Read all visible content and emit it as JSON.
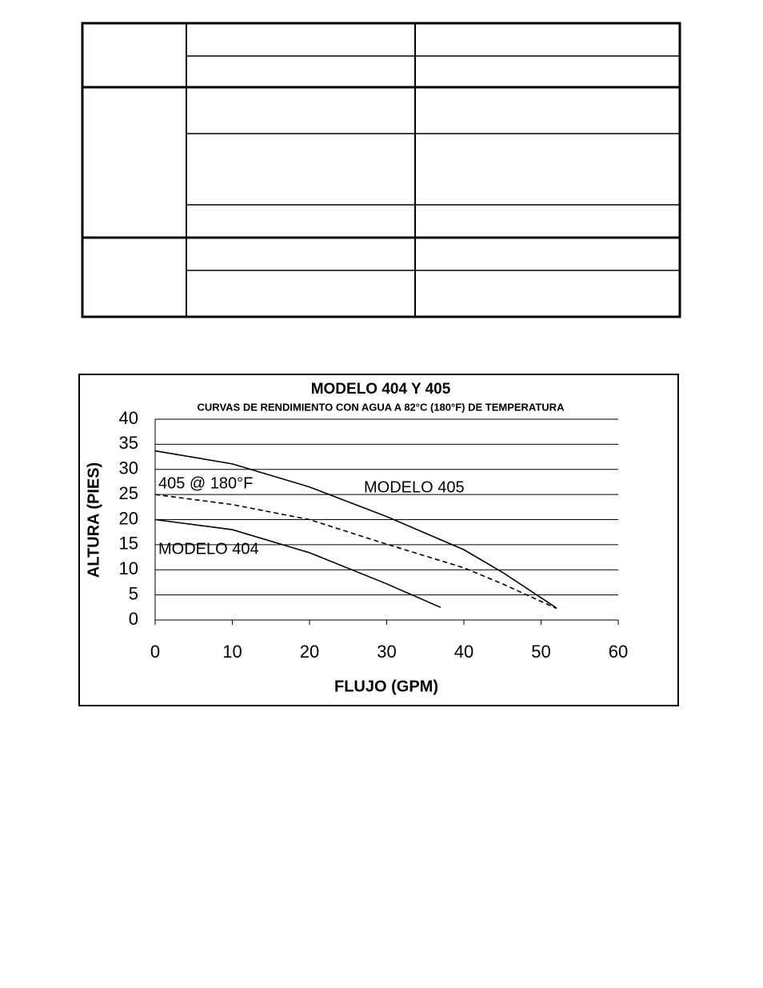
{
  "chart_data": {
    "type": "line",
    "title": "MODELO 404 Y 405",
    "subtitle": "CURVAS DE RENDIMIENTO CON AGUA A 82°C  (180°F) DE TEMPERATURA",
    "x_label": "FLUJO (GPM)",
    "y_label": "ALTURA (PIES)",
    "xlim": [
      0,
      60
    ],
    "xticks": [
      0,
      10,
      20,
      30,
      40,
      50,
      60
    ],
    "ylim": [
      0,
      40
    ],
    "yticks": [
      0,
      5,
      10,
      15,
      20,
      25,
      30,
      35,
      40
    ],
    "grid": true,
    "series": [
      {
        "name": "MODELO 405",
        "color": "#000000",
        "style": "solid",
        "x": [
          0,
          10,
          20,
          30,
          40,
          45,
          52
        ],
        "values": [
          33.7,
          31.1,
          26.5,
          20.6,
          14,
          9.5,
          2.4
        ]
      },
      {
        "name": "405 @ 180°F",
        "color": "#000000",
        "style": "dashed",
        "x": [
          0,
          10,
          20,
          30,
          40,
          45,
          52
        ],
        "values": [
          25,
          23,
          20,
          15.1,
          10.4,
          7.2,
          2.3
        ]
      },
      {
        "name": "MODELO 404",
        "color": "#000000",
        "style": "solid",
        "x": [
          0,
          10,
          20,
          30,
          37
        ],
        "values": [
          20,
          18,
          13.4,
          7.2,
          2.5
        ]
      }
    ]
  }
}
